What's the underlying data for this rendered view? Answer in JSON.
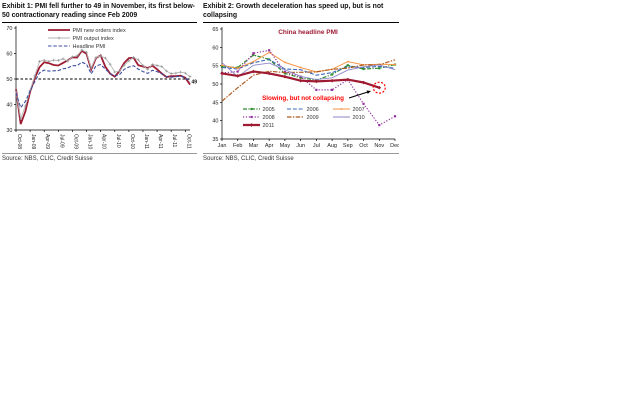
{
  "exhibit1": {
    "title": "Exhibit 1: PMI fell further to 49 in November, its first below-50 contractionary reading since Feb 2009",
    "source": "Source: NBS, CLIC, Credit Suisse"
  },
  "exhibit2": {
    "title": "Exhibit 2: Growth deceleration has speed up, but is not collapsing",
    "source": "Source: NBS, CLIC, Credit Suisse"
  },
  "chart_data": [
    {
      "type": "line",
      "title": "",
      "x": [
        "Oct-08",
        "Nov-08",
        "Dec-08",
        "Jan-09",
        "Feb-09",
        "Mar-09",
        "Apr-09",
        "May-09",
        "Jun-09",
        "Jul-09",
        "Aug-09",
        "Sep-09",
        "Oct-09",
        "Nov-09",
        "Dec-09",
        "Jan-10",
        "Feb-10",
        "Mar-10",
        "Apr-10",
        "May-10",
        "Jun-10",
        "Jul-10",
        "Aug-10",
        "Sep-10",
        "Oct-10",
        "Nov-10",
        "Dec-10",
        "Jan-11",
        "Feb-11",
        "Mar-11",
        "Apr-11",
        "May-11",
        "Jun-11",
        "Jul-11",
        "Aug-11",
        "Sep-11",
        "Oct-11",
        "Nov-11"
      ],
      "x_tick_every": 3,
      "ylim": [
        30,
        70
      ],
      "yticks": [
        30,
        40,
        50,
        60,
        70
      ],
      "refline": {
        "y": 50,
        "color": "#000000",
        "dash": "2.6 1.9"
      },
      "end_label": {
        "text": "49",
        "series": "Headline PMI",
        "color": "#111111"
      },
      "series": [
        {
          "name": "PMI new orders index",
          "color": "#9E1B32",
          "width": 1.8,
          "dash": null,
          "marker": null,
          "values": [
            46.0,
            32.3,
            37.3,
            45.0,
            50.4,
            54.6,
            56.6,
            56.2,
            55.5,
            55.3,
            56.3,
            57.3,
            58.5,
            58.4,
            61.0,
            59.9,
            53.7,
            58.1,
            59.3,
            54.8,
            52.1,
            50.9,
            53.1,
            56.3,
            58.2,
            58.3,
            55.4,
            54.9,
            54.3,
            55.2,
            53.8,
            52.1,
            50.8,
            51.1,
            51.1,
            51.3,
            50.5,
            47.8
          ]
        },
        {
          "name": "PMI output index",
          "color": "#b5b5b5",
          "width": 0.9,
          "dash": null,
          "marker": {
            "type": "plus",
            "color": "#8f8f8f",
            "size": 1.4
          },
          "values": [
            45.1,
            34.5,
            39.4,
            45.5,
            51.2,
            56.9,
            57.4,
            56.9,
            57.4,
            57.3,
            57.9,
            57.0,
            58.7,
            59.1,
            61.4,
            60.5,
            54.3,
            58.4,
            59.1,
            58.2,
            55.8,
            52.7,
            53.1,
            55.4,
            57.1,
            58.5,
            57.5,
            55.3,
            53.8,
            55.7,
            55.3,
            54.9,
            53.1,
            52.1,
            52.3,
            52.7,
            52.3,
            50.9
          ]
        },
        {
          "name": "Headline PMI",
          "color": "#3D4FA1",
          "width": 1.1,
          "dash": "3.5 1.8",
          "marker": null,
          "values": [
            44.6,
            38.8,
            41.2,
            45.3,
            49.0,
            52.4,
            53.5,
            53.1,
            53.2,
            53.3,
            54.0,
            54.3,
            55.2,
            55.2,
            56.6,
            55.8,
            52.0,
            55.1,
            55.7,
            53.9,
            52.1,
            51.2,
            51.7,
            53.8,
            54.7,
            55.2,
            53.9,
            52.9,
            52.2,
            53.4,
            52.9,
            52.0,
            50.9,
            50.7,
            50.9,
            51.2,
            50.4,
            49.0
          ]
        }
      ]
    },
    {
      "type": "line",
      "title": "China headline PMI",
      "title_color": "#9E1B32",
      "x": [
        "Jan",
        "Feb",
        "Mar",
        "Apr",
        "May",
        "Jun",
        "Jul",
        "Aug",
        "Sep",
        "Oct",
        "Nov",
        "Dec"
      ],
      "x_tick_every": 1,
      "ylim": [
        35,
        65
      ],
      "yticks": [
        35,
        40,
        45,
        50,
        55,
        60,
        65
      ],
      "annotation": {
        "text": "Slowing, but not collapsing",
        "color": "#FF0000"
      },
      "highlight": {
        "series": "2011",
        "color": "#FF0000",
        "dash": "2 1.6"
      },
      "series": [
        {
          "name": "2005",
          "color": "#2E8B2E",
          "width": 1.2,
          "dash": "4 1.4 1.2 1.4",
          "marker": {
            "type": "square",
            "color": "#2E8B2E",
            "size": 2.2
          },
          "values": [
            54.7,
            54.5,
            57.9,
            56.7,
            52.9,
            51.7,
            51.1,
            52.6,
            55.1,
            54.1,
            54.3,
            55.3
          ]
        },
        {
          "name": "2006",
          "color": "#3B6CB9",
          "width": 1.1,
          "dash": "4 1.8",
          "marker": null,
          "values": [
            54.5,
            54.1,
            55.8,
            56.7,
            54.1,
            53.9,
            52.4,
            53.1,
            54.7,
            54.5,
            54.8,
            54.3
          ]
        },
        {
          "name": "2007",
          "color": "#F79646",
          "width": 1.0,
          "dash": null,
          "marker": {
            "type": "square",
            "color": "#F79646",
            "size": 1.6
          },
          "values": [
            55.1,
            54.3,
            56.1,
            58.6,
            55.9,
            54.5,
            53.3,
            54.0,
            56.1,
            55.2,
            55.4,
            55.3
          ]
        },
        {
          "name": "2008",
          "color": "#9333A0",
          "width": 1.2,
          "dash": "1.2 1.7",
          "marker": {
            "type": "square",
            "color": "#9333A0",
            "size": 2.2
          },
          "values": [
            53.0,
            53.4,
            58.4,
            59.2,
            53.3,
            52.0,
            48.4,
            48.4,
            51.2,
            44.6,
            38.8,
            41.2
          ]
        },
        {
          "name": "2009",
          "color": "#AE5A21",
          "width": 1.2,
          "dash": "4.5 1.4 1.4 1.4",
          "marker": null,
          "values": [
            45.3,
            49.0,
            52.4,
            53.5,
            53.1,
            53.2,
            53.3,
            54.0,
            54.3,
            55.2,
            55.2,
            56.6
          ]
        },
        {
          "name": "2010",
          "color": "#8F86C8",
          "width": 0.9,
          "dash": null,
          "marker": null,
          "values": [
            55.8,
            52.0,
            55.1,
            55.7,
            53.9,
            52.1,
            51.2,
            51.7,
            53.8,
            54.7,
            55.2,
            53.9
          ]
        },
        {
          "name": "2011",
          "color": "#9E1B32",
          "width": 2.2,
          "dash": null,
          "marker": {
            "type": "diamond",
            "color": "#9E1B32",
            "size": 2.6
          },
          "values": [
            52.9,
            52.2,
            53.4,
            52.9,
            52.0,
            50.9,
            50.7,
            50.9,
            51.2,
            50.4,
            49.0
          ]
        }
      ]
    }
  ]
}
